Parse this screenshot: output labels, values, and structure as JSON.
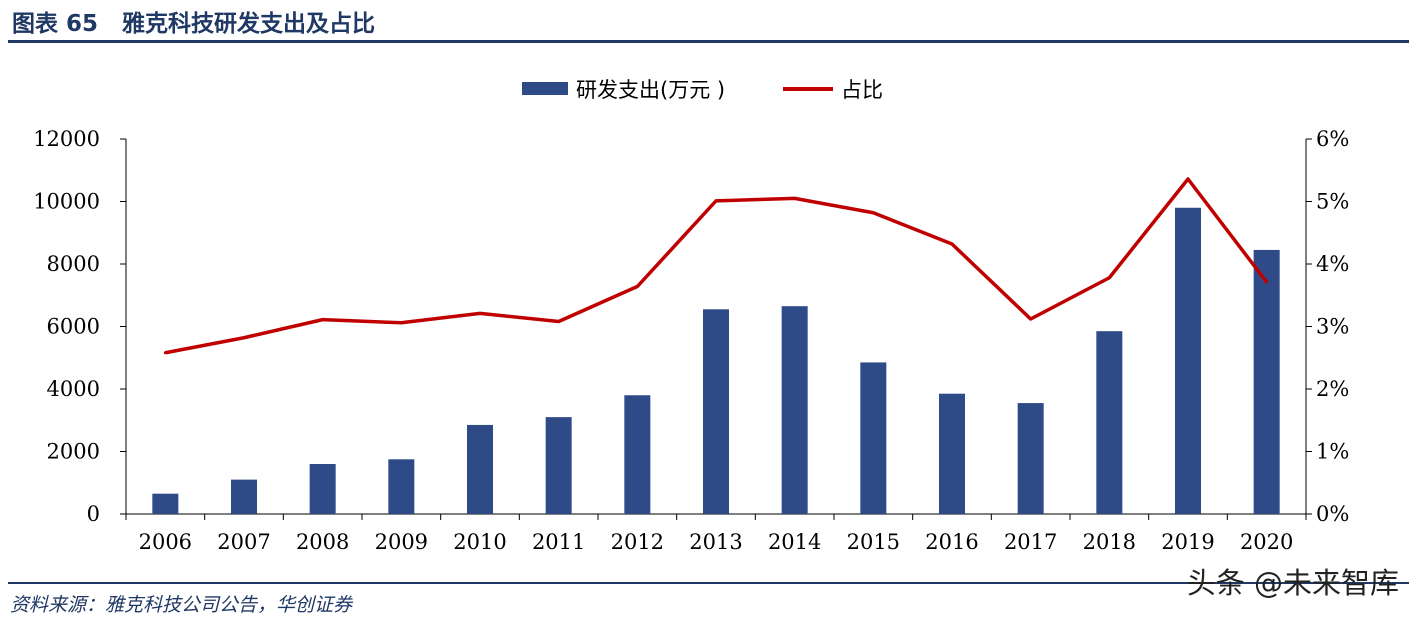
{
  "header": {
    "title": "图表 65   雅克科技研发支出及占比"
  },
  "footer": {
    "source": "资料来源：雅克科技公司公告，华创证券"
  },
  "watermark": {
    "text": "头条 @未来智库"
  },
  "colors": {
    "bar": "#2e4a87",
    "line": "#c00000",
    "rule": "#1f3864"
  },
  "chart_data": {
    "type": "bar+line",
    "categories": [
      "2006",
      "2007",
      "2008",
      "2009",
      "2010",
      "2011",
      "2012",
      "2013",
      "2014",
      "2015",
      "2016",
      "2017",
      "2018",
      "2019",
      "2020"
    ],
    "series": [
      {
        "name": "研发支出(万元 )",
        "type": "bar",
        "axis": "left",
        "values": [
          650,
          1100,
          1600,
          1750,
          2850,
          3100,
          3800,
          6550,
          6650,
          4850,
          3850,
          3550,
          5850,
          9800,
          8450
        ]
      },
      {
        "name": "占比",
        "type": "line",
        "axis": "right",
        "values": [
          0.0258,
          0.0282,
          0.0311,
          0.0306,
          0.0321,
          0.0308,
          0.0364,
          0.0501,
          0.0505,
          0.0482,
          0.0432,
          0.0312,
          0.0378,
          0.0536,
          0.0371
        ]
      }
    ],
    "y_left": {
      "min": 0,
      "max": 12000,
      "ticks": [
        "0",
        "2000",
        "4000",
        "6000",
        "8000",
        "10000",
        "12000"
      ]
    },
    "y_right": {
      "min": 0,
      "max": 0.06,
      "ticks": [
        "0%",
        "1%",
        "2%",
        "3%",
        "4%",
        "5%",
        "6%"
      ]
    },
    "legend": "top-center",
    "grid": false
  }
}
